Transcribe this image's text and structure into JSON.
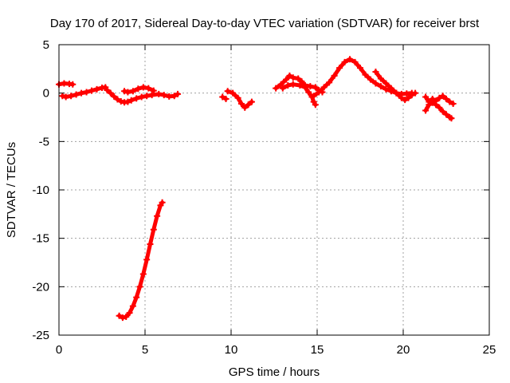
{
  "chart_data": {
    "type": "scatter",
    "title": "Day 170 of 2017, Sidereal Day-to-day VTEC variation (SDTVAR) for receiver brst",
    "xlabel": "GPS time / hours",
    "ylabel": "SDTVAR / TECUs",
    "xlim": [
      0,
      25
    ],
    "ylim": [
      -25,
      5
    ],
    "xticks": [
      0,
      5,
      10,
      15,
      20,
      25
    ],
    "yticks": [
      5,
      0,
      -5,
      -10,
      -15,
      -20,
      -25
    ],
    "grid": true,
    "marker": "plus",
    "series": [
      {
        "name": "SDTVAR",
        "color": "#ff0000",
        "segments": [
          [
            [
              0.0,
              0.9
            ],
            [
              0.3,
              1.0
            ],
            [
              0.6,
              0.95
            ],
            [
              0.8,
              0.9
            ]
          ],
          [
            [
              0.2,
              -0.3
            ],
            [
              0.4,
              -0.4
            ],
            [
              0.7,
              -0.3
            ],
            [
              1.0,
              -0.15
            ],
            [
              1.3,
              0.0
            ],
            [
              1.6,
              0.1
            ],
            [
              1.9,
              0.25
            ],
            [
              2.2,
              0.4
            ],
            [
              2.5,
              0.55
            ],
            [
              2.7,
              0.6
            ]
          ],
          [
            [
              2.8,
              0.3
            ],
            [
              3.0,
              0.0
            ],
            [
              3.2,
              -0.35
            ],
            [
              3.4,
              -0.65
            ],
            [
              3.6,
              -0.85
            ],
            [
              3.8,
              -0.95
            ],
            [
              4.0,
              -0.9
            ],
            [
              4.2,
              -0.75
            ],
            [
              4.5,
              -0.55
            ],
            [
              4.8,
              -0.4
            ],
            [
              5.1,
              -0.3
            ],
            [
              5.4,
              -0.2
            ],
            [
              5.8,
              -0.1
            ],
            [
              6.1,
              -0.2
            ],
            [
              6.4,
              -0.35
            ],
            [
              6.7,
              -0.3
            ],
            [
              6.9,
              -0.1
            ]
          ],
          [
            [
              3.8,
              0.2
            ],
            [
              4.0,
              0.1
            ],
            [
              4.3,
              0.2
            ],
            [
              4.6,
              0.45
            ],
            [
              4.9,
              0.6
            ],
            [
              5.2,
              0.5
            ],
            [
              5.5,
              0.25
            ]
          ],
          [
            [
              3.5,
              -23.0
            ],
            [
              3.7,
              -23.2
            ],
            [
              3.9,
              -23.1
            ],
            [
              4.1,
              -22.7
            ],
            [
              4.3,
              -22.0
            ],
            [
              4.5,
              -21.1
            ],
            [
              4.7,
              -20.0
            ],
            [
              4.9,
              -18.7
            ],
            [
              5.1,
              -17.2
            ],
            [
              5.3,
              -15.6
            ],
            [
              5.5,
              -14.1
            ],
            [
              5.7,
              -12.7
            ],
            [
              5.9,
              -11.6
            ],
            [
              6.0,
              -11.3
            ]
          ],
          [
            [
              9.5,
              -0.4
            ],
            [
              9.7,
              -0.6
            ]
          ],
          [
            [
              9.8,
              0.2
            ],
            [
              10.1,
              0.0
            ],
            [
              10.4,
              -0.5
            ],
            [
              10.6,
              -1.1
            ],
            [
              10.8,
              -1.5
            ],
            [
              11.0,
              -1.2
            ],
            [
              11.2,
              -0.9
            ]
          ],
          [
            [
              12.6,
              0.5
            ],
            [
              12.9,
              0.9
            ],
            [
              13.2,
              1.4
            ],
            [
              13.4,
              1.8
            ],
            [
              13.6,
              1.6
            ],
            [
              13.9,
              1.5
            ],
            [
              14.1,
              1.2
            ],
            [
              14.3,
              0.8
            ],
            [
              14.6,
              0.7
            ],
            [
              14.9,
              0.6
            ],
            [
              15.1,
              0.3
            ],
            [
              15.3,
              0.1
            ]
          ],
          [
            [
              13.0,
              0.5
            ],
            [
              13.3,
              0.8
            ],
            [
              13.6,
              0.9
            ],
            [
              14.0,
              0.8
            ],
            [
              14.3,
              0.6
            ],
            [
              14.5,
              0.1
            ],
            [
              14.7,
              -0.4
            ],
            [
              14.8,
              -0.9
            ],
            [
              14.9,
              -1.2
            ]
          ],
          [
            [
              14.8,
              -0.3
            ],
            [
              15.1,
              0.1
            ],
            [
              15.4,
              0.6
            ],
            [
              15.7,
              1.1
            ],
            [
              16.0,
              1.8
            ],
            [
              16.3,
              2.6
            ],
            [
              16.6,
              3.2
            ],
            [
              16.9,
              3.5
            ],
            [
              17.2,
              3.2
            ],
            [
              17.5,
              2.6
            ],
            [
              17.8,
              1.9
            ],
            [
              18.1,
              1.4
            ],
            [
              18.4,
              1.0
            ],
            [
              18.7,
              0.7
            ],
            [
              19.0,
              0.4
            ],
            [
              19.3,
              0.2
            ],
            [
              19.6,
              0.0
            ],
            [
              19.9,
              -0.1
            ],
            [
              20.2,
              -0.05
            ],
            [
              20.5,
              0.0
            ]
          ],
          [
            [
              18.4,
              2.2
            ],
            [
              18.7,
              1.5
            ],
            [
              19.0,
              1.0
            ],
            [
              19.3,
              0.5
            ],
            [
              19.6,
              0.0
            ],
            [
              19.9,
              -0.5
            ],
            [
              20.1,
              -0.7
            ],
            [
              20.3,
              -0.5
            ],
            [
              20.5,
              -0.2
            ],
            [
              20.7,
              0.0
            ]
          ],
          [
            [
              21.3,
              -1.8
            ],
            [
              21.5,
              -1.2
            ],
            [
              21.7,
              -1.0
            ],
            [
              21.9,
              -1.2
            ],
            [
              22.1,
              -1.5
            ],
            [
              22.3,
              -1.9
            ],
            [
              22.5,
              -2.2
            ],
            [
              22.7,
              -2.5
            ],
            [
              22.8,
              -2.6
            ]
          ],
          [
            [
              21.3,
              -0.4
            ],
            [
              21.5,
              -0.9
            ],
            [
              21.7,
              -0.6
            ],
            [
              21.9,
              -0.8
            ],
            [
              22.1,
              -0.5
            ],
            [
              22.3,
              -0.3
            ],
            [
              22.5,
              -0.6
            ],
            [
              22.7,
              -0.9
            ],
            [
              22.9,
              -1.1
            ]
          ]
        ]
      }
    ]
  }
}
